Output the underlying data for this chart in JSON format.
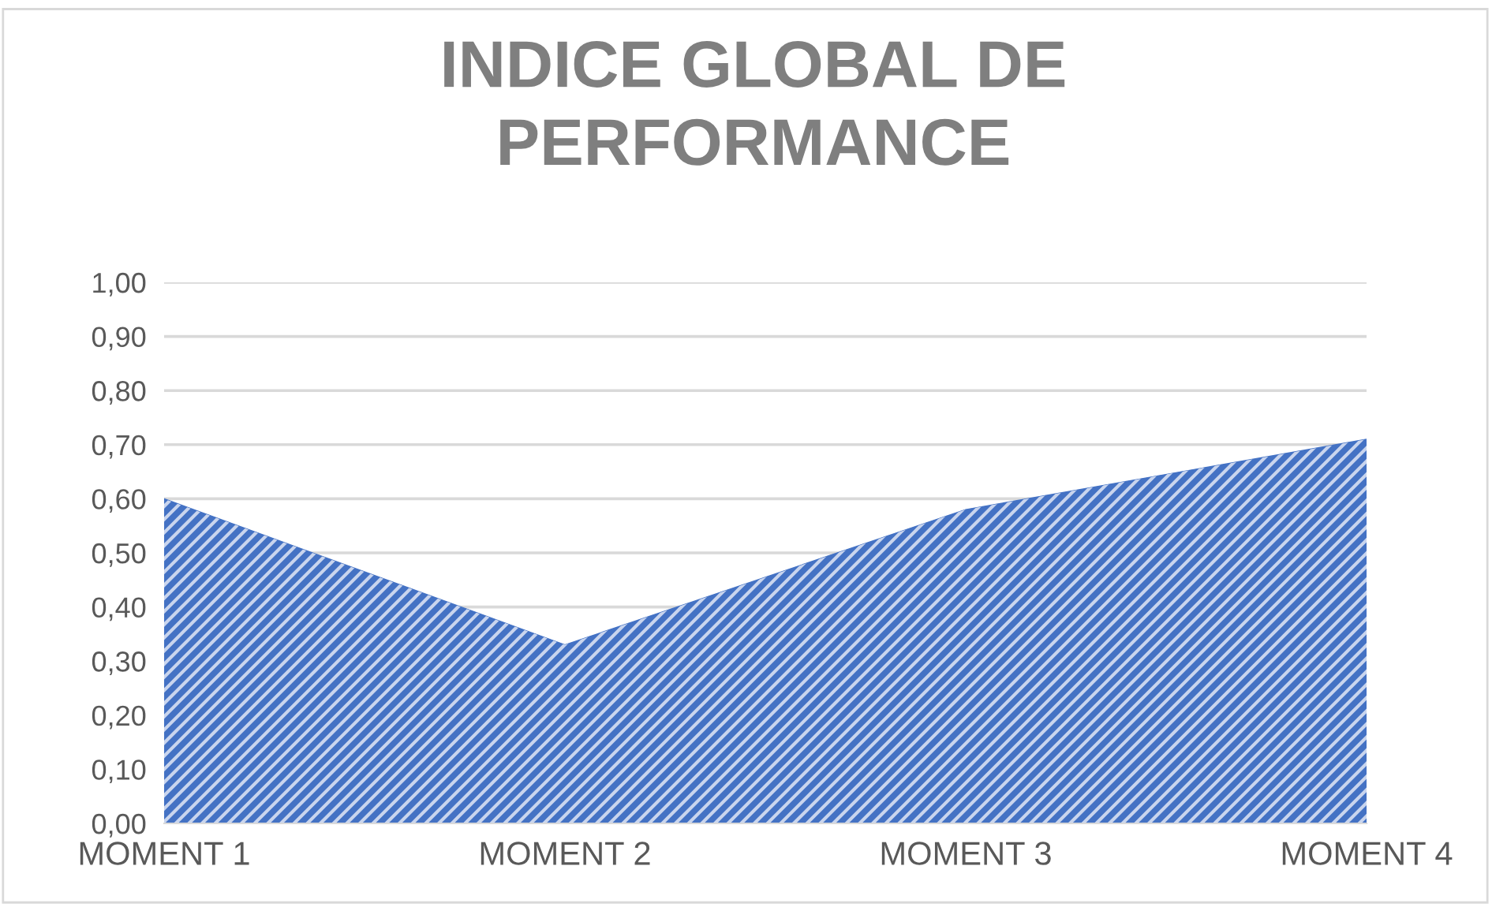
{
  "chart_data": {
    "type": "area",
    "title": "INDICE GLOBAL DE\nPERFORMANCE",
    "categories": [
      "MOMENT 1",
      "MOMENT 2",
      "MOMENT 3",
      "MOMENT 4"
    ],
    "series": [
      {
        "color": "#4472c4",
        "values": [
          0.6,
          0.33,
          0.58,
          0.71
        ]
      }
    ],
    "ylim": [
      0,
      1
    ],
    "yticks": [
      {
        "value": 0,
        "label": "0,00"
      },
      {
        "value": 0.1,
        "label": "0,10"
      },
      {
        "value": 0.2,
        "label": "0,20"
      },
      {
        "value": 0.3,
        "label": "0,30"
      },
      {
        "value": 0.4,
        "label": "0,40"
      },
      {
        "value": 0.5,
        "label": "0,50"
      },
      {
        "value": 0.6,
        "label": "0,60"
      },
      {
        "value": 0.7,
        "label": "0,70"
      },
      {
        "value": 0.8,
        "label": "0,80"
      },
      {
        "value": 0.9,
        "label": "0,90"
      },
      {
        "value": 1,
        "label": "1,00"
      }
    ],
    "grid": "y"
  }
}
